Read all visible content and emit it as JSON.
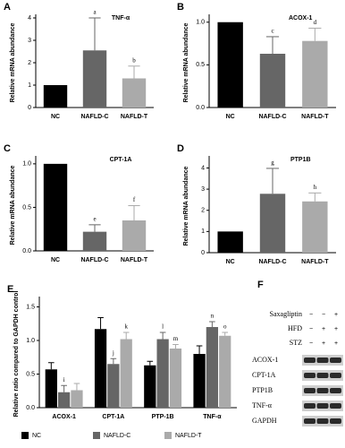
{
  "chart_data": [
    {
      "type": "bar",
      "panel": "A",
      "title": "TNF-α",
      "ylabel": "Relative mRNA abundance",
      "categories": [
        "NC",
        "NAFLD-C",
        "NAFLD-T"
      ],
      "values": [
        1,
        2.55,
        1.3
      ],
      "errors": [
        0,
        1.45,
        0.55
      ],
      "annotations": [
        null,
        "a",
        "b"
      ],
      "colors": [
        "#000000",
        "#666666",
        "#aaaaaa"
      ],
      "ylim": [
        0,
        4
      ],
      "yticks": [
        0,
        1,
        2,
        3,
        4
      ]
    },
    {
      "type": "bar",
      "panel": "B",
      "title": "ACOX-1",
      "ylabel": "Relative mRNA abundance",
      "categories": [
        "NC",
        "NAFLD-C",
        "NAFLD-T"
      ],
      "values": [
        1,
        0.63,
        0.78
      ],
      "errors": [
        0,
        0.2,
        0.15
      ],
      "annotations": [
        null,
        "c",
        "d"
      ],
      "colors": [
        "#000000",
        "#666666",
        "#aaaaaa"
      ],
      "ylim": [
        0,
        1.05
      ],
      "yticks": [
        {
          "value": 0,
          "label": "0.0"
        },
        {
          "value": 0.5,
          "label": "0.5"
        },
        {
          "value": 1,
          "label": "1.0"
        }
      ]
    },
    {
      "type": "bar",
      "panel": "C",
      "title": "CPT-1A",
      "ylabel": "Relative mRNA abundance",
      "categories": [
        "NC",
        "NAFLD-C",
        "NAFLD-T"
      ],
      "values": [
        1,
        0.22,
        0.35
      ],
      "errors": [
        0,
        0.08,
        0.17
      ],
      "annotations": [
        null,
        "e",
        "f"
      ],
      "colors": [
        "#000000",
        "#666666",
        "#aaaaaa"
      ],
      "ylim": [
        0,
        1.05
      ],
      "yticks": [
        {
          "value": 0,
          "label": "0.0"
        },
        {
          "value": 0.5,
          "label": "0.5"
        },
        {
          "value": 1,
          "label": "1.0"
        }
      ]
    },
    {
      "type": "bar",
      "panel": "D",
      "title": "PTP1B",
      "ylabel": "Relative mRNA abundance",
      "categories": [
        "NC",
        "NAFLD-C",
        "NAFLD-T"
      ],
      "values": [
        1,
        2.78,
        2.42
      ],
      "errors": [
        0,
        1.2,
        0.4
      ],
      "annotations": [
        null,
        "g",
        "h"
      ],
      "colors": [
        "#000000",
        "#666666",
        "#aaaaaa"
      ],
      "ylim": [
        0,
        4.4
      ],
      "yticks": [
        0,
        1,
        2,
        3,
        4
      ]
    },
    {
      "type": "grouped-bar",
      "panel": "E",
      "ylabel": "Relative ratio compared to GAPDH control",
      "categories": [
        "ACOX-1",
        "CPT-1A",
        "PTP-1B",
        "TNF-α"
      ],
      "series": [
        {
          "name": "NC",
          "color": "#000000",
          "values": [
            0.57,
            1.17,
            0.63,
            0.8
          ],
          "errors": [
            0.1,
            0.17,
            0.06,
            0.12
          ],
          "annotations": [
            null,
            null,
            null,
            null
          ]
        },
        {
          "name": "NAFLD-C",
          "color": "#666666",
          "values": [
            0.23,
            0.65,
            1.02,
            1.2
          ],
          "errors": [
            0.1,
            0.08,
            0.1,
            0.08
          ],
          "annotations": [
            "i",
            "j",
            "l",
            "n"
          ]
        },
        {
          "name": "NAFLD-T",
          "color": "#aaaaaa",
          "values": [
            0.26,
            1.02,
            0.88,
            1.07
          ],
          "errors": [
            0.1,
            0.1,
            0.06,
            0.05
          ],
          "annotations": [
            null,
            "k",
            "m",
            "o"
          ]
        }
      ],
      "ylim": [
        0,
        1.6
      ],
      "yticks": [
        {
          "value": 0,
          "label": "0.0"
        },
        {
          "value": 0.5,
          "label": "0.5"
        },
        {
          "value": 1,
          "label": "1.0"
        },
        {
          "value": 1.5,
          "label": "1.5"
        }
      ]
    }
  ],
  "blot": {
    "panel": "F",
    "conditions": [
      {
        "label": "Saxagliptin",
        "signs": [
          "−",
          "−",
          "+"
        ]
      },
      {
        "label": "HFD",
        "signs": [
          "−",
          "+",
          "+"
        ]
      },
      {
        "label": "STZ",
        "signs": [
          "−",
          "+",
          "+"
        ]
      }
    ],
    "bands": [
      "ACOX-1",
      "CPT-1A",
      "PTP1B",
      "TNF-α",
      "GAPDH"
    ]
  }
}
